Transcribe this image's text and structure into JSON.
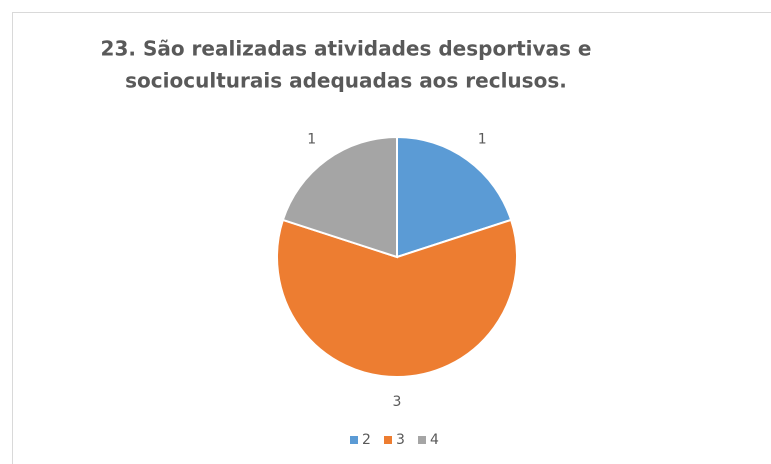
{
  "chart_data": {
    "type": "pie",
    "title": [
      "23. São realizadas atividades desportivas e",
      "socioculturais adequadas aos reclusos."
    ],
    "categories": [
      "2",
      "3",
      "4"
    ],
    "values": [
      1,
      3,
      1
    ],
    "colors": [
      "#5b9bd5",
      "#ed7d31",
      "#a5a5a5"
    ],
    "legend": "bottom"
  }
}
